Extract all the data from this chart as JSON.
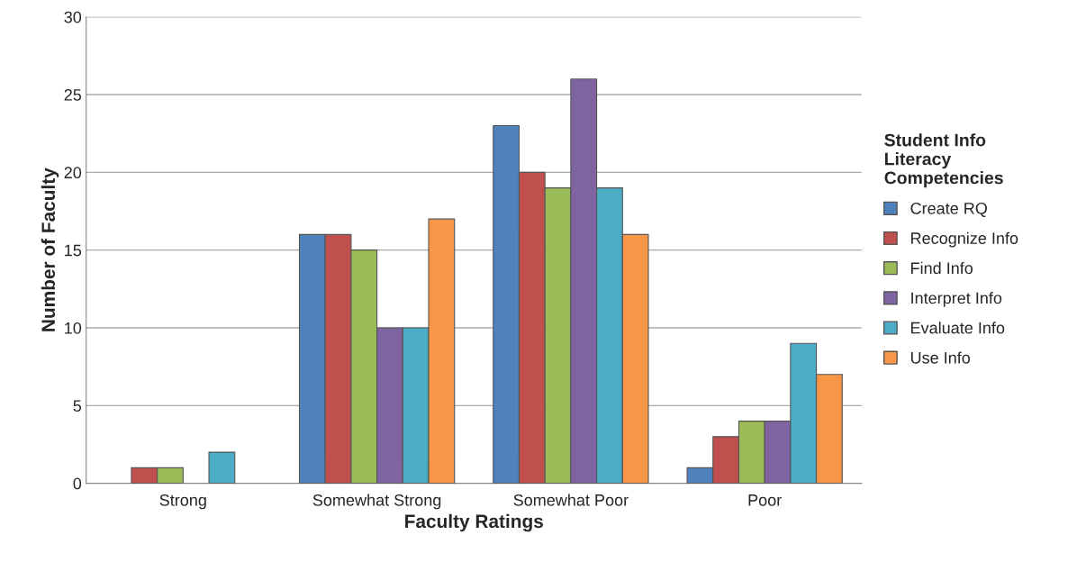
{
  "chart_data": {
    "type": "bar",
    "xlabel": "Faculty Ratings",
    "ylabel": "Number of Faculty",
    "legend_title": "Student Info\nLiteracy\nCompetencies",
    "categories": [
      "Strong",
      "Somewhat Strong",
      "Somewhat Poor",
      "Poor"
    ],
    "series": [
      {
        "name": "Create RQ",
        "color": "#4f81bd",
        "values": [
          0,
          16,
          23,
          1
        ]
      },
      {
        "name": "Recognize Info",
        "color": "#c0504d",
        "values": [
          1,
          16,
          20,
          3
        ]
      },
      {
        "name": "Find Info",
        "color": "#9bbb59",
        "values": [
          1,
          15,
          19,
          4
        ]
      },
      {
        "name": "Interpret Info",
        "color": "#8064a2",
        "values": [
          0,
          10,
          26,
          4
        ]
      },
      {
        "name": "Evaluate Info",
        "color": "#4bacc6",
        "values": [
          2,
          10,
          19,
          9
        ]
      },
      {
        "name": "Use Info",
        "color": "#f79646",
        "values": [
          0,
          17,
          16,
          7
        ]
      }
    ],
    "ylim": [
      0,
      30
    ],
    "yticks": [
      0,
      5,
      10,
      15,
      20,
      25,
      30
    ],
    "grid": "y",
    "legend": "right"
  }
}
